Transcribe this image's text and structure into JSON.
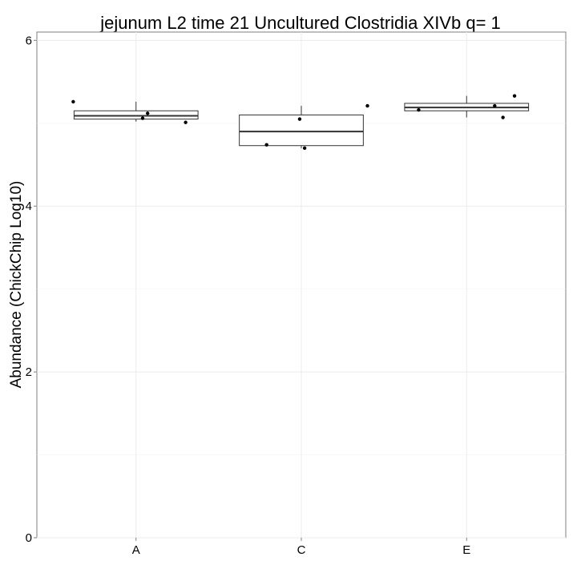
{
  "chart_data": {
    "type": "box",
    "title": "jejunum L2 time 21 Uncultured Clostridia XIVb q= 1",
    "xlabel": "",
    "ylabel": "Abundance (ChickChip Log10)",
    "ylim": [
      0,
      6.1
    ],
    "yticks": [
      0,
      2,
      4,
      6
    ],
    "grid": true,
    "categories": [
      "A",
      "C",
      "E"
    ],
    "boxes": [
      {
        "category": "A",
        "whisker_low": 5.02,
        "q1": 5.05,
        "median": 5.09,
        "q3": 5.15,
        "whisker_high": 5.26
      },
      {
        "category": "C",
        "whisker_low": 4.7,
        "q1": 4.73,
        "median": 4.9,
        "q3": 5.1,
        "whisker_high": 5.21
      },
      {
        "category": "E",
        "whisker_low": 5.07,
        "q1": 5.15,
        "median": 5.19,
        "q3": 5.24,
        "whisker_high": 5.33
      }
    ],
    "points": [
      {
        "category": "A",
        "x": 0.62,
        "y": 5.26
      },
      {
        "category": "A",
        "x": 1.04,
        "y": 5.06
      },
      {
        "category": "A",
        "x": 1.07,
        "y": 5.12
      },
      {
        "category": "A",
        "x": 1.3,
        "y": 5.01
      },
      {
        "category": "C",
        "x": 1.79,
        "y": 4.74
      },
      {
        "category": "C",
        "x": 1.99,
        "y": 5.05
      },
      {
        "category": "C",
        "x": 2.02,
        "y": 4.7
      },
      {
        "category": "C",
        "x": 2.4,
        "y": 5.21
      },
      {
        "category": "E",
        "x": 2.71,
        "y": 5.16
      },
      {
        "category": "E",
        "x": 3.17,
        "y": 5.21
      },
      {
        "category": "E",
        "x": 3.22,
        "y": 5.07
      },
      {
        "category": "E",
        "x": 3.29,
        "y": 5.33
      }
    ]
  }
}
